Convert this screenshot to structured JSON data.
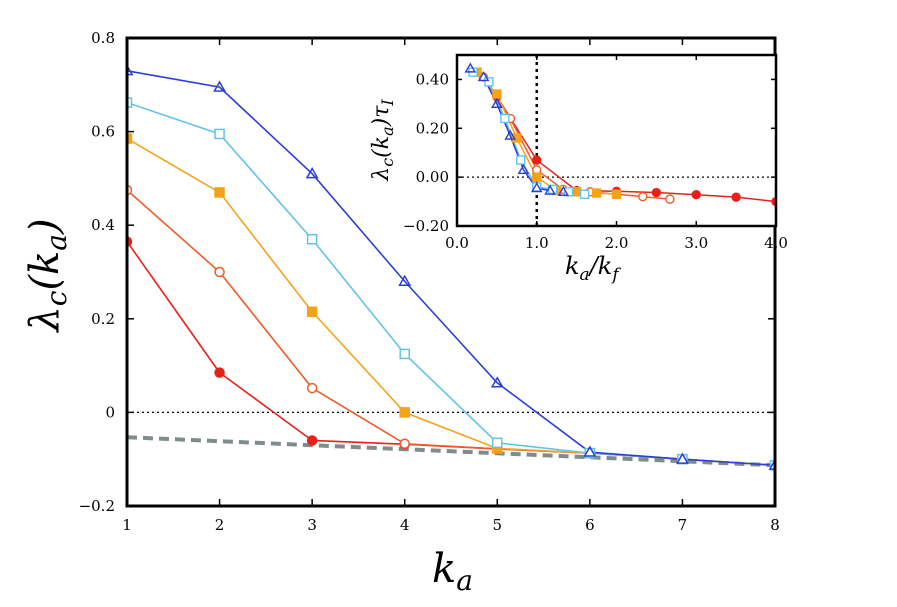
{
  "chart_data": [
    {
      "panel": "main",
      "type": "line",
      "title": "",
      "xlabel": "k_a",
      "ylabel": "λ_c(k_a)",
      "xlim": [
        1,
        8
      ],
      "ylim": [
        -0.2,
        0.8
      ],
      "xticks": [
        1,
        2,
        3,
        4,
        5,
        6,
        7,
        8
      ],
      "xtick_labels": [
        "1",
        "2",
        "3",
        "4",
        "5",
        "6",
        "7",
        "8"
      ],
      "yticks": [
        -0.2,
        0,
        0.2,
        0.4,
        0.6,
        0.8
      ],
      "ytick_labels": [
        "−0.2",
        "0",
        "0.2",
        "0.4",
        "0.6",
        "0.8"
      ],
      "grid": false,
      "reference_lines": [
        {
          "kind": "horizontal",
          "y": 0,
          "style": "dotted",
          "color": "#000000"
        },
        {
          "kind": "line",
          "x": [
            1,
            8
          ],
          "y": [
            -0.053,
            -0.113
          ],
          "style": "dashed",
          "color": "#7f8c8d"
        }
      ],
      "series": [
        {
          "color": "#e8201a",
          "marker": "filled-circle",
          "x": [
            1,
            2,
            3,
            4,
            5,
            6,
            7,
            8
          ],
          "y": [
            0.365,
            0.085,
            -0.06,
            -0.068,
            -0.078,
            -0.087,
            -0.1,
            -0.113
          ]
        },
        {
          "color": "#f05a28",
          "marker": "open-circle",
          "x": [
            1,
            2,
            3,
            4,
            5,
            6,
            7,
            8
          ],
          "y": [
            0.475,
            0.3,
            0.052,
            -0.067,
            -0.078,
            -0.087,
            -0.1,
            -0.113
          ]
        },
        {
          "color": "#f5a21b",
          "marker": "filled-square",
          "x": [
            1,
            2,
            3,
            4,
            5,
            6,
            7,
            8
          ],
          "y": [
            0.585,
            0.47,
            0.215,
            0.0,
            -0.077,
            -0.087,
            -0.1,
            -0.113
          ]
        },
        {
          "color": "#62c3ea",
          "marker": "open-square",
          "x": [
            1,
            2,
            3,
            4,
            5,
            6,
            7,
            8
          ],
          "y": [
            0.662,
            0.595,
            0.37,
            0.125,
            -0.065,
            -0.087,
            -0.1,
            -0.113
          ]
        },
        {
          "color": "#2b3fd4",
          "marker": "open-triangle",
          "x": [
            1,
            2,
            3,
            4,
            5,
            6,
            7,
            8
          ],
          "y": [
            0.73,
            0.695,
            0.51,
            0.28,
            0.063,
            -0.085,
            -0.1,
            -0.113
          ]
        }
      ]
    },
    {
      "panel": "inset",
      "type": "line",
      "title": "",
      "xlabel": "k_a/k_f",
      "ylabel": "λ_c(k_a)τ_I",
      "xlim": [
        0.0,
        4.0
      ],
      "ylim": [
        -0.2,
        0.5
      ],
      "xticks": [
        0.0,
        1.0,
        2.0,
        3.0,
        4.0
      ],
      "xtick_labels": [
        "0.0",
        "1.0",
        "2.0",
        "3.0",
        "4.0"
      ],
      "yticks": [
        -0.2,
        0.0,
        0.2,
        0.4
      ],
      "ytick_labels": [
        "−0.20",
        "0.00",
        "0.20",
        "0.40"
      ],
      "grid": false,
      "reference_lines": [
        {
          "kind": "horizontal",
          "y": 0,
          "style": "dotted",
          "color": "#000000"
        },
        {
          "kind": "vertical",
          "x": 1.0,
          "style": "dotted",
          "color": "#000000"
        }
      ],
      "series": [
        {
          "color": "#e8201a",
          "marker": "filled-circle",
          "x": [
            0.5,
            1.0,
            1.5,
            2.0,
            2.5,
            3.0,
            3.5,
            4.0
          ],
          "y": [
            0.33,
            0.07,
            -0.055,
            -0.058,
            -0.063,
            -0.072,
            -0.082,
            -0.1
          ]
        },
        {
          "color": "#f05a28",
          "marker": "open-circle",
          "x": [
            0.33,
            0.67,
            1.0,
            1.33,
            1.67,
            2.0,
            2.33,
            2.67
          ],
          "y": [
            0.41,
            0.24,
            0.03,
            -0.05,
            -0.06,
            -0.07,
            -0.08,
            -0.09
          ]
        },
        {
          "color": "#f5a21b",
          "marker": "filled-square",
          "x": [
            0.25,
            0.5,
            0.75,
            1.0,
            1.25,
            1.5,
            1.75,
            2.0
          ],
          "y": [
            0.43,
            0.34,
            0.16,
            0.0,
            -0.055,
            -0.06,
            -0.065,
            -0.07
          ]
        },
        {
          "color": "#62c3ea",
          "marker": "open-square",
          "x": [
            0.2,
            0.4,
            0.6,
            0.8,
            1.0,
            1.2,
            1.4,
            1.6
          ],
          "y": [
            0.43,
            0.39,
            0.24,
            0.07,
            -0.04,
            -0.05,
            -0.06,
            -0.07
          ]
        },
        {
          "color": "#2b3fd4",
          "marker": "open-triangle",
          "x": [
            0.167,
            0.333,
            0.5,
            0.667,
            0.833,
            1.0,
            1.167,
            1.333
          ],
          "y": [
            0.445,
            0.41,
            0.3,
            0.17,
            0.03,
            -0.045,
            -0.055,
            -0.06
          ]
        }
      ]
    }
  ]
}
